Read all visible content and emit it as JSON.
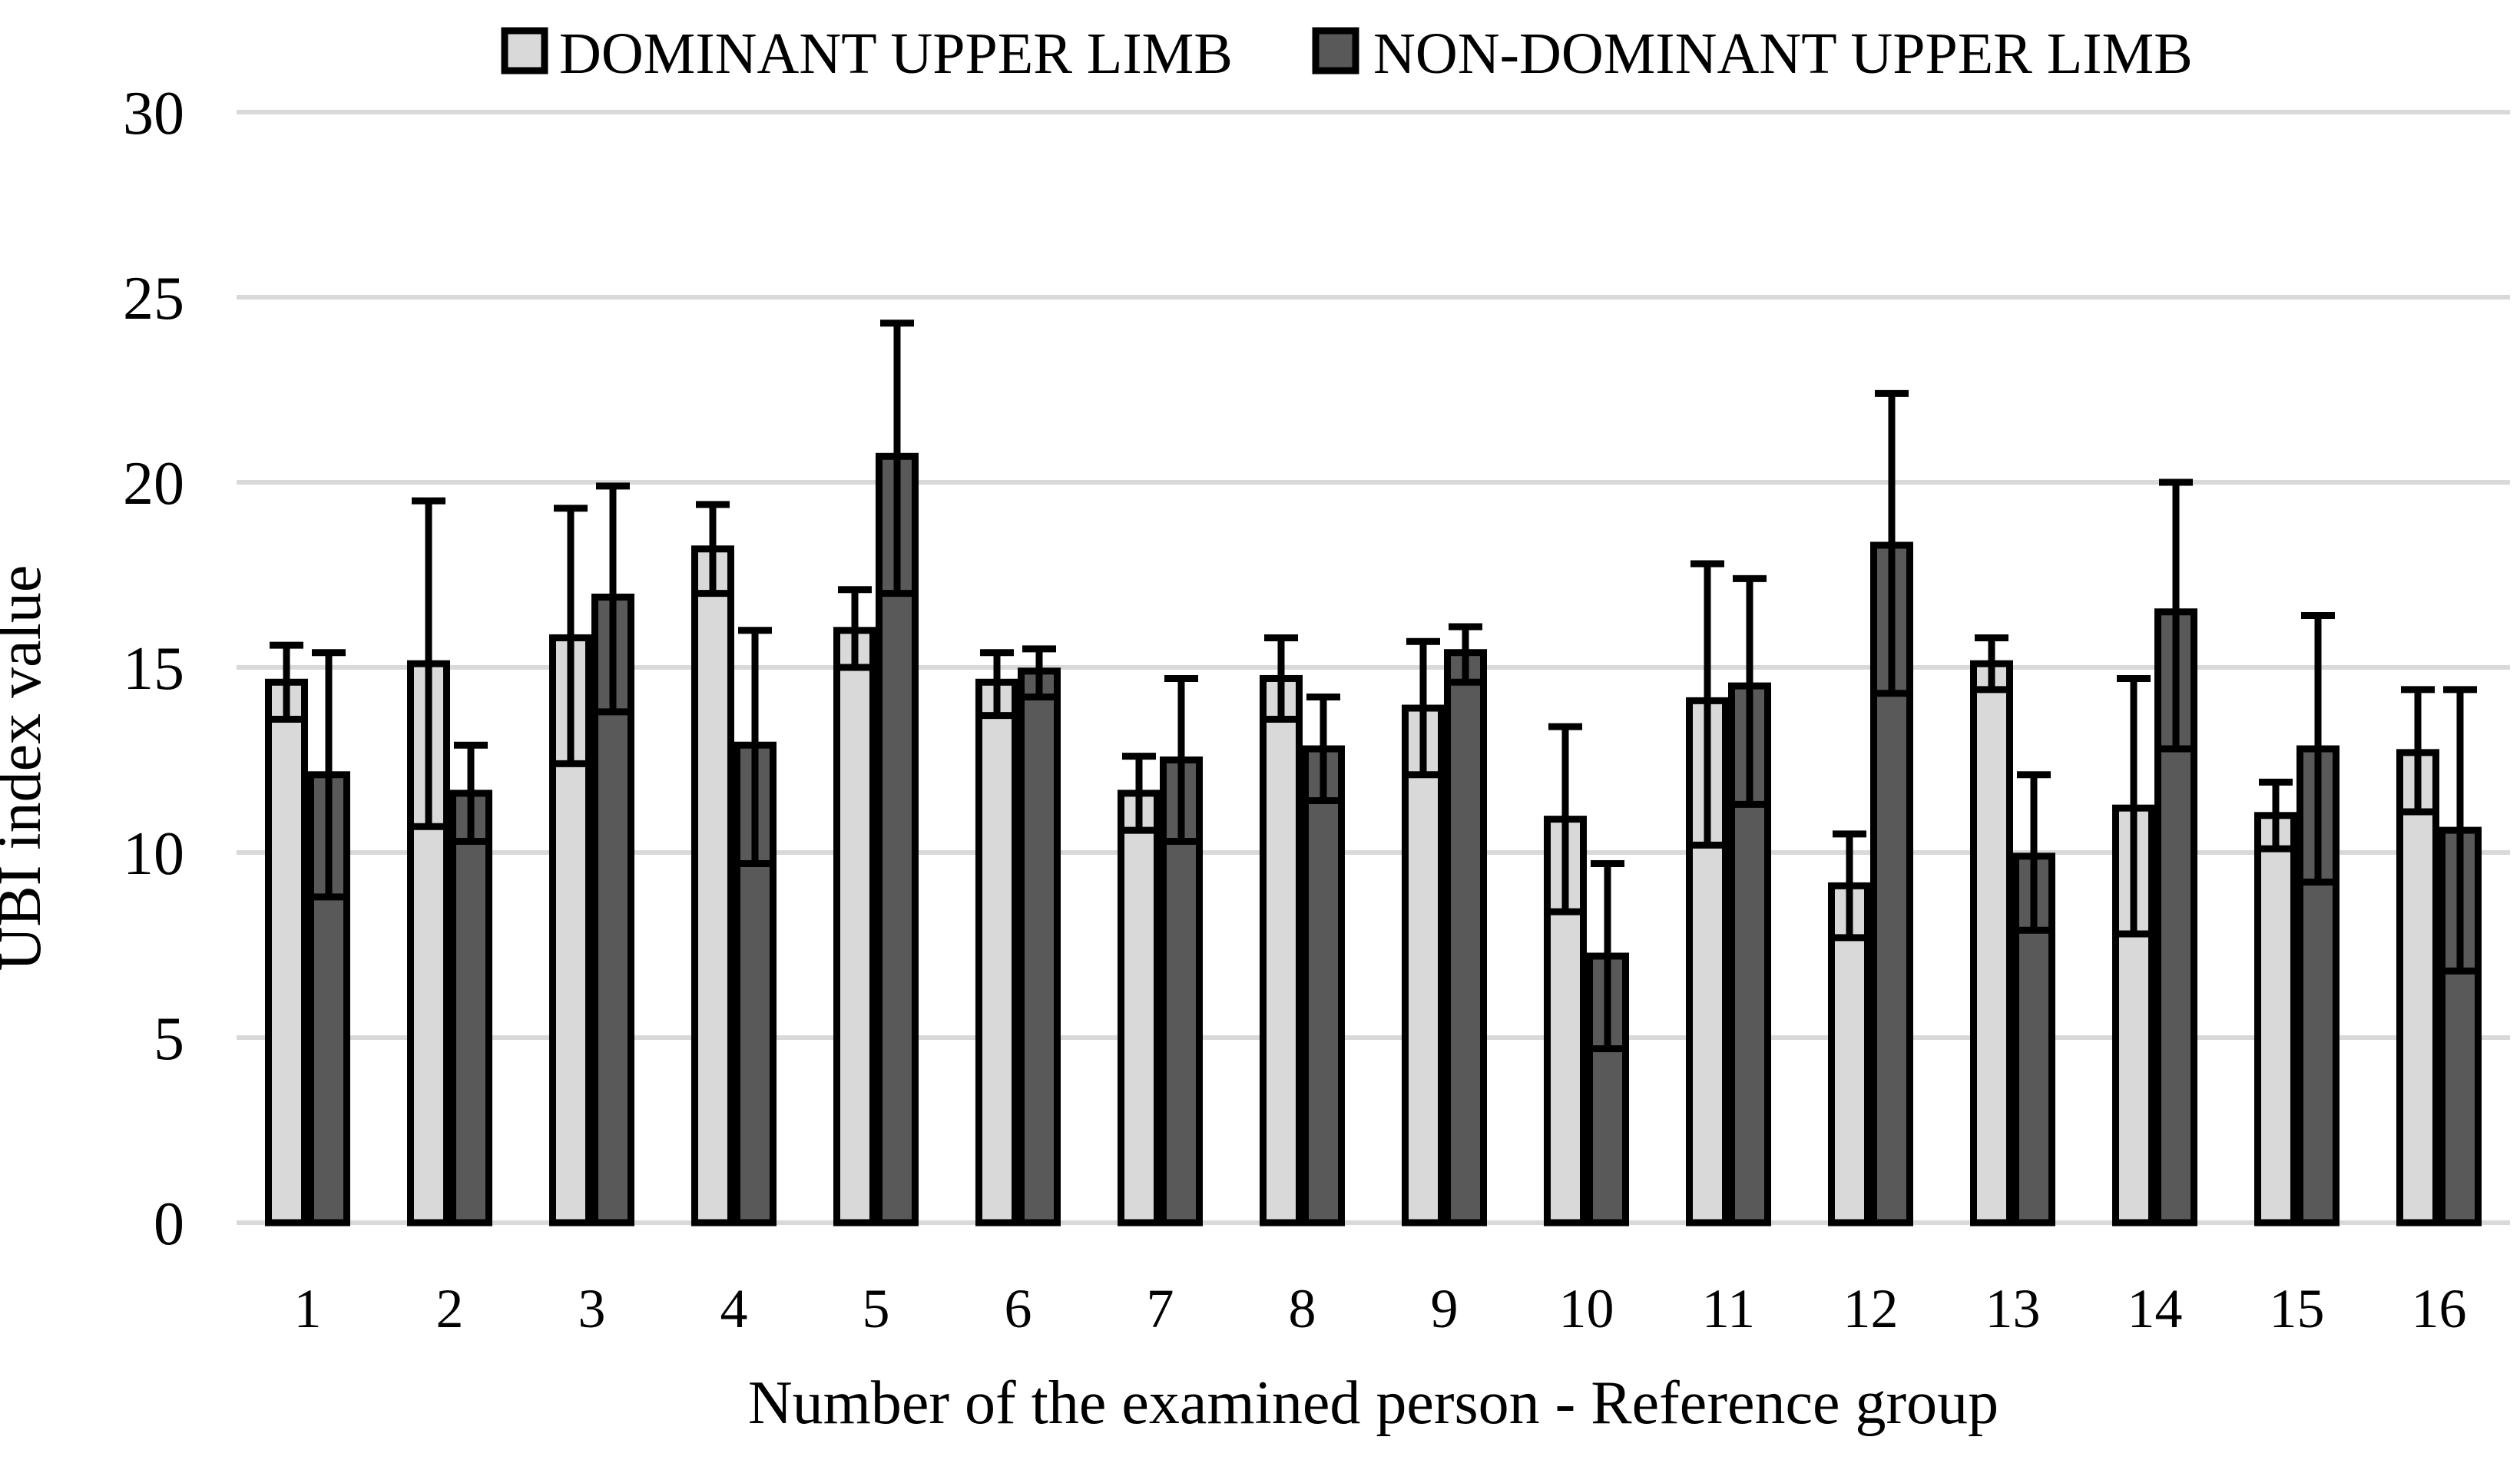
{
  "figure": {
    "background": "#ffffff"
  },
  "chart_data": {
    "type": "bar",
    "title": "",
    "xlabel": "Number of the examined person - Reference group",
    "ylabel": "UBI index value",
    "categories": [
      "1",
      "2",
      "3",
      "4",
      "5",
      "6",
      "7",
      "8",
      "9",
      "10",
      "11",
      "12",
      "13",
      "14",
      "15",
      "16"
    ],
    "ylim": [
      0,
      30
    ],
    "yticks": [
      0,
      5,
      10,
      15,
      20,
      25,
      30
    ],
    "grid": true,
    "legend_position": "top-center",
    "error_bars": true,
    "series": [
      {
        "name": "DOMINANT UPPER LIMB",
        "color": "#d9d9d9",
        "values": [
          14.6,
          15.1,
          15.8,
          18.2,
          16.0,
          14.6,
          11.6,
          14.7,
          13.9,
          10.9,
          14.1,
          9.1,
          15.1,
          11.2,
          11.0,
          12.7
        ],
        "error_low": [
          13.6,
          10.7,
          12.4,
          17.0,
          15.0,
          13.7,
          10.6,
          13.6,
          12.1,
          8.4,
          10.2,
          7.7,
          14.4,
          7.8,
          10.1,
          11.1
        ],
        "error_high": [
          15.6,
          19.5,
          19.3,
          19.4,
          17.1,
          15.4,
          12.6,
          15.8,
          15.7,
          13.4,
          17.8,
          10.5,
          15.8,
          14.7,
          11.9,
          14.4
        ]
      },
      {
        "name": "NON-DOMINANT UPPER LIMB",
        "color": "#595959",
        "values": [
          12.1,
          11.6,
          16.9,
          12.9,
          20.7,
          14.9,
          12.5,
          12.8,
          15.4,
          7.2,
          14.5,
          18.3,
          9.9,
          16.5,
          12.8,
          10.6
        ],
        "error_low": [
          8.8,
          10.3,
          13.8,
          9.7,
          17.0,
          14.2,
          10.3,
          11.4,
          14.6,
          4.7,
          11.3,
          14.3,
          7.9,
          12.8,
          9.2,
          6.8
        ],
        "error_high": [
          15.4,
          12.9,
          19.9,
          16.0,
          24.3,
          15.5,
          14.7,
          14.2,
          16.1,
          9.7,
          17.4,
          22.4,
          12.1,
          20.0,
          16.4,
          14.4
        ]
      }
    ],
    "colors": {
      "bar_outline": "#000000",
      "error_bar": "#000000",
      "gridline": "#d9d9d9",
      "text": "#000000"
    }
  }
}
